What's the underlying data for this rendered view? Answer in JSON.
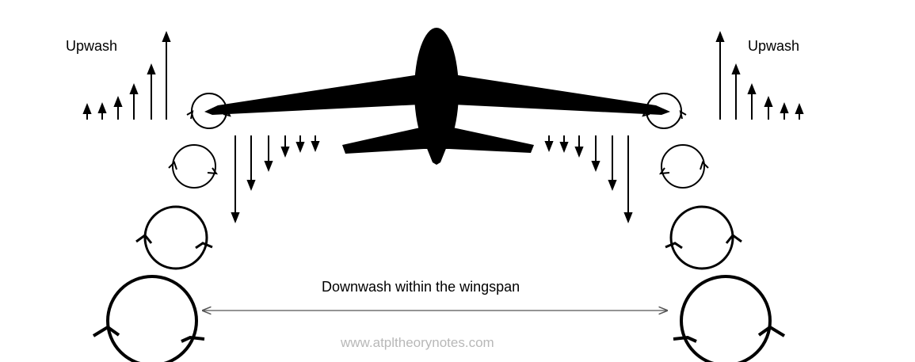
{
  "diagram": {
    "left_label": "Upwash",
    "right_label": "Upwash",
    "center_label": "Downwash within the wingspan",
    "watermark": "www.atpltheorynotes.com"
  },
  "colors": {
    "ink": "#000000",
    "dimension_line": "#555555",
    "watermark": "#b8b8b8"
  },
  "icons": {
    "aircraft": "airliner-silhouette-rear-view",
    "vortex": "circular-vortex-with-direction-marks"
  }
}
